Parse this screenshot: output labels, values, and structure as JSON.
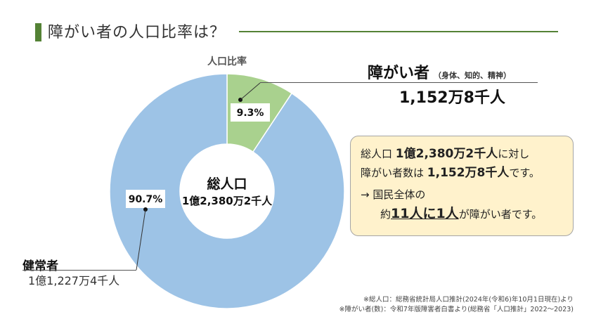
{
  "title": "障がい者の人口比率は？",
  "chart_data": {
    "type": "pie",
    "title": "人口比率",
    "center_label": "総人口",
    "center_value": "1億2,380万2千人",
    "categories": [
      "障がい者",
      "健常者"
    ],
    "values": [
      9.3,
      90.7
    ],
    "value_labels": [
      "9.3%",
      "90.7%"
    ],
    "colors": [
      "#a9d18e",
      "#9dc3e6"
    ]
  },
  "disabled": {
    "label": "障がい者",
    "detail": "（身体、知的、精神）",
    "count": "1,152万8千人"
  },
  "healthy": {
    "label": "健常者",
    "count": "1億1,227万4千人"
  },
  "info": {
    "l1_pre": "総人口 ",
    "l1_bold": "1億2,380万2千人",
    "l1_post": "に対し",
    "l2_pre": "障がい者数は ",
    "l2_bold": "1,152万8千人",
    "l2_post": "です。",
    "l3": "→ 国民全体の",
    "l4_pre": "約",
    "l4_bold": "11人に1人",
    "l4_post": "が障がい者です。"
  },
  "notes": [
    "※総人口：総務省統計局人口推計(2024年(令和6)年10月1日現在)より",
    "※障がい者(数)：令和7年版障害者白書より(総務省「人口推計」2022〜2023)"
  ]
}
